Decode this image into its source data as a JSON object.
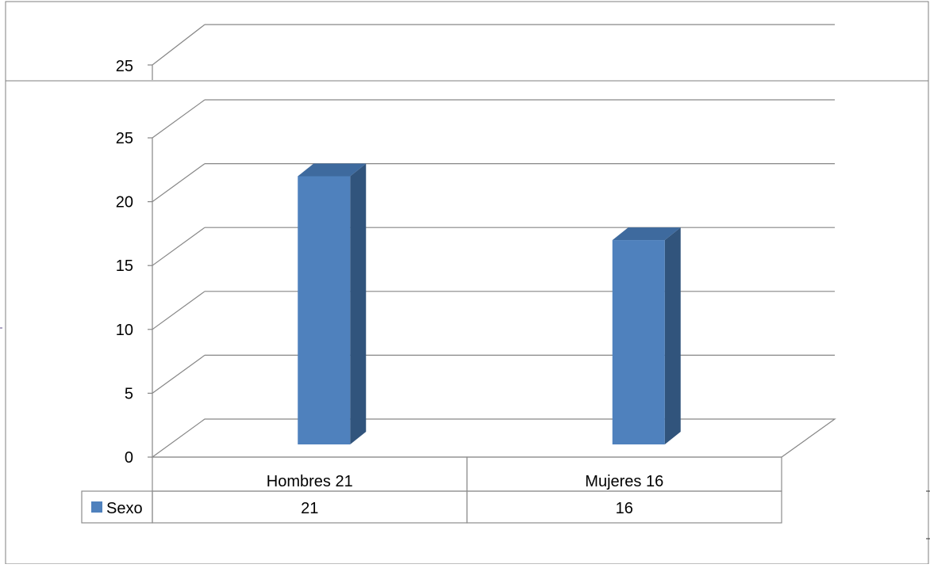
{
  "chart_data": {
    "type": "bar",
    "categories": [
      "Hombres 21",
      "Mujeres 16"
    ],
    "series": [
      {
        "name": "Sexo",
        "values": [
          21,
          16
        ]
      }
    ],
    "ylim": [
      0,
      25
    ],
    "yticks": [
      0,
      5,
      10,
      15,
      20,
      25
    ],
    "grid": true,
    "data_table": {
      "header_row": [
        "Hombres 21",
        "Mujeres 16"
      ],
      "rows": [
        {
          "label": "Sexo",
          "values": [
            "21",
            "16"
          ]
        }
      ]
    },
    "colors": {
      "bar_front": "#4F81BD",
      "bar_side": "#31547C",
      "bar_top": "#3E6A9E",
      "gridline": "#868686",
      "table_border": "#8C8C8C",
      "frame": "#7F7F7F"
    }
  },
  "background_chart": {
    "ytick_label": "25"
  }
}
